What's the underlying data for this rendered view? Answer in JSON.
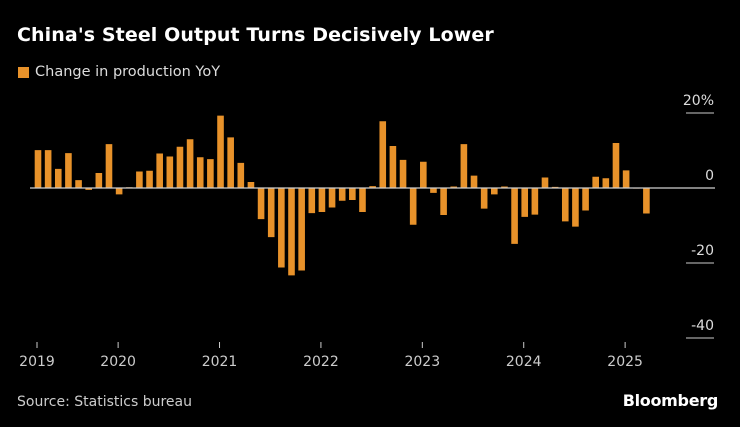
{
  "title": "China's Steel Output Turns Decisively Lower",
  "legend": {
    "label": "Change in production YoY",
    "color": "#E8922A"
  },
  "source": "Source: Statistics bureau",
  "brand": "Bloomberg",
  "colors": {
    "bar": "#E8922A",
    "background": "#000000",
    "axis": "#cccccc"
  },
  "chart_data": {
    "type": "bar",
    "title": "China's Steel Output Turns Decisively Lower",
    "xlabel": "",
    "ylabel": "",
    "ylim": [
      -40,
      20
    ],
    "yticks": [
      20,
      0,
      -20,
      -40
    ],
    "ytick_labels": [
      "20%",
      "0",
      "-20",
      "-40"
    ],
    "grid": false,
    "legend_position": "top-left",
    "series": [
      {
        "name": "Change in production YoY",
        "values": [
          10.1,
          10.1,
          5.1,
          9.3,
          2.1,
          -0.5,
          4.0,
          11.7,
          -1.7,
          0.2,
          4.4,
          4.6,
          9.2,
          8.4,
          11.0,
          13.0,
          8.2,
          7.7,
          19.3,
          13.5,
          6.7,
          1.6,
          -8.3,
          -13.1,
          -21.2,
          -23.3,
          -22.0,
          -6.7,
          -6.4,
          -5.2,
          -3.4,
          -3.2,
          -6.4,
          0.5,
          17.8,
          11.2,
          7.5,
          -9.8,
          7.0,
          -1.3,
          -7.2,
          0.4,
          11.7,
          3.3,
          -5.5,
          -1.7,
          0.4,
          -14.9,
          -7.7,
          -7.1,
          2.8,
          0.3,
          -8.9,
          -10.3,
          -6.0,
          3.0,
          2.6,
          12.0,
          4.7,
          -0.1,
          -6.8
        ]
      }
    ],
    "x_ticks": [
      {
        "label": "2019",
        "index": 0
      },
      {
        "label": "2020",
        "index": 8
      },
      {
        "label": "2021",
        "index": 18
      },
      {
        "label": "2022",
        "index": 28
      },
      {
        "label": "2023",
        "index": 38
      },
      {
        "label": "2024",
        "index": 48
      },
      {
        "label": "2025",
        "index": 58
      }
    ]
  }
}
